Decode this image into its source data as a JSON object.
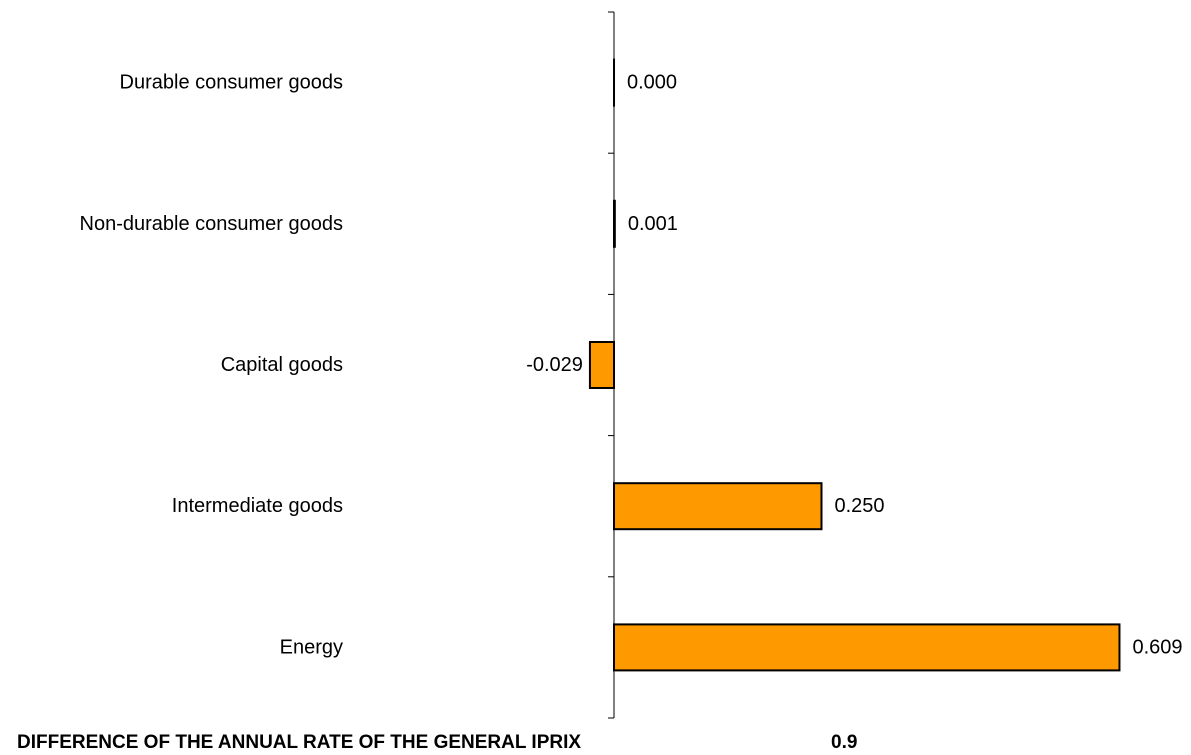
{
  "chart_data": {
    "type": "bar",
    "orientation": "horizontal",
    "categories": [
      "Durable consumer goods",
      "Non-durable consumer goods",
      "Capital goods",
      "Intermediate goods",
      "Energy"
    ],
    "values": [
      0.0,
      0.001,
      -0.029,
      0.25,
      0.609
    ],
    "value_labels": [
      "0.000",
      "0.001",
      "-0.029",
      "0.250",
      "0.609"
    ],
    "bar_color": "#FF9900",
    "bar_outline": "#000000",
    "xlim": [
      -0.03,
      0.61
    ],
    "grid": false,
    "legend": "none"
  },
  "footer": {
    "label": "DIFFERENCE OF THE ANNUAL RATE OF THE GENERAL IPRIX",
    "value": "0.9"
  }
}
